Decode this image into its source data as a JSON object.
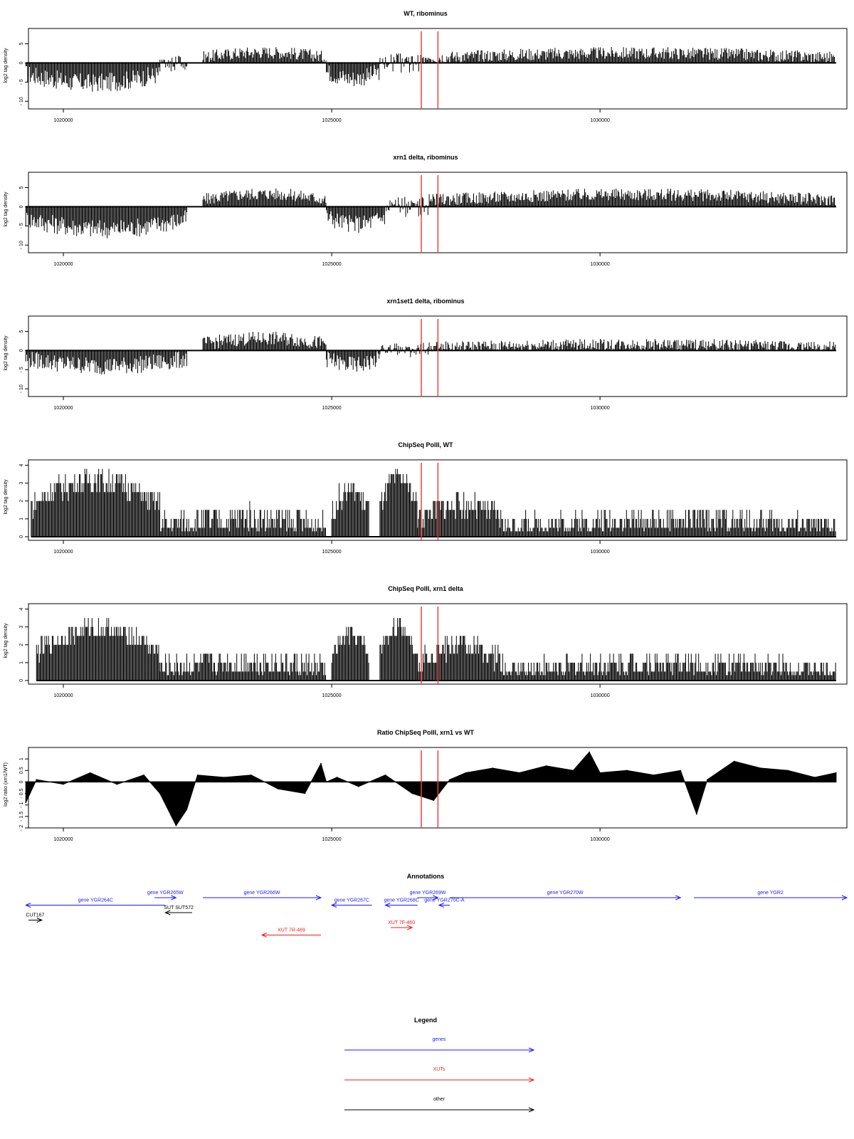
{
  "x_ticks": [
    1020000,
    1025000,
    1030000
  ],
  "xlim": [
    1019350,
    1034600
  ],
  "marker_positions": [
    1026670,
    1026980
  ],
  "colors": {
    "trace": "#000000",
    "marker": "#f04040",
    "gene": "#1c1cf0",
    "xut": "#f01c1c",
    "other": "#000000"
  },
  "chart_data": [
    {
      "type": "bar",
      "title": "WT, ribominus",
      "ylabel": "log2 tag density",
      "ylim": [
        -12,
        9
      ],
      "y_ticks": [
        -10,
        -5,
        0,
        5
      ],
      "series": [
        {
          "start": 1019300,
          "end": 1021800,
          "level": -5.2,
          "spread": 2.5,
          "sign": "neg"
        },
        {
          "start": 1021800,
          "end": 1022300,
          "level": -1.2,
          "spread": 1.0,
          "sign": "mix"
        },
        {
          "start": 1022600,
          "end": 1024900,
          "level": 2.8,
          "spread": 1.6,
          "sign": "pos"
        },
        {
          "start": 1024900,
          "end": 1025900,
          "level": -4.0,
          "spread": 2.3,
          "sign": "neg"
        },
        {
          "start": 1025900,
          "end": 1026800,
          "level": 1.2,
          "spread": 1.4,
          "sign": "mix"
        },
        {
          "start": 1026800,
          "end": 1034400,
          "level": 2.6,
          "spread": 1.6,
          "sign": "pos"
        }
      ]
    },
    {
      "type": "bar",
      "title": "xrn1 delta, ribominus",
      "ylabel": "log2 tag density",
      "ylim": [
        -12,
        9
      ],
      "y_ticks": [
        -10,
        -5,
        0,
        5
      ],
      "series": [
        {
          "start": 1019300,
          "end": 1022300,
          "level": -5.8,
          "spread": 2.5,
          "sign": "neg"
        },
        {
          "start": 1022600,
          "end": 1024900,
          "level": 3.4,
          "spread": 1.6,
          "sign": "pos"
        },
        {
          "start": 1024900,
          "end": 1026000,
          "level": -4.5,
          "spread": 2.3,
          "sign": "neg"
        },
        {
          "start": 1026000,
          "end": 1026800,
          "level": 1.0,
          "spread": 1.8,
          "sign": "mix"
        },
        {
          "start": 1026800,
          "end": 1034400,
          "level": 3.2,
          "spread": 1.6,
          "sign": "pos"
        }
      ]
    },
    {
      "type": "bar",
      "title": "xrn1set1 delta, ribominus",
      "ylabel": "log2 tag density",
      "ylim": [
        -12,
        9
      ],
      "y_ticks": [
        -10,
        -5,
        0,
        5
      ],
      "series": [
        {
          "start": 1019300,
          "end": 1022300,
          "level": -4.0,
          "spread": 2.3,
          "sign": "neg"
        },
        {
          "start": 1022600,
          "end": 1024900,
          "level": 3.2,
          "spread": 1.8,
          "sign": "pos"
        },
        {
          "start": 1024900,
          "end": 1025900,
          "level": -3.8,
          "spread": 2.2,
          "sign": "neg"
        },
        {
          "start": 1025900,
          "end": 1026800,
          "level": 0.6,
          "spread": 1.6,
          "sign": "mix"
        },
        {
          "start": 1026800,
          "end": 1034400,
          "level": 1.6,
          "spread": 1.5,
          "sign": "pos"
        }
      ]
    },
    {
      "type": "bar",
      "title": "ChipSeq PolII, WT",
      "ylabel": "log2 tag density",
      "ylim": [
        -0.2,
        4.3
      ],
      "y_ticks": [
        0,
        1,
        2,
        3,
        4
      ],
      "series": [
        {
          "start": 1019400,
          "end": 1021800,
          "level": 3.2,
          "spread": 0.7,
          "sign": "pos"
        },
        {
          "start": 1021800,
          "end": 1024900,
          "level": 1.0,
          "spread": 0.8,
          "sign": "pos"
        },
        {
          "start": 1025000,
          "end": 1025700,
          "level": 2.6,
          "spread": 0.7,
          "sign": "pos"
        },
        {
          "start": 1025900,
          "end": 1026600,
          "level": 3.3,
          "spread": 0.6,
          "sign": "pos"
        },
        {
          "start": 1026600,
          "end": 1028200,
          "level": 1.8,
          "spread": 0.7,
          "sign": "pos"
        },
        {
          "start": 1028200,
          "end": 1034400,
          "level": 0.9,
          "spread": 0.7,
          "sign": "pos"
        }
      ]
    },
    {
      "type": "bar",
      "title": "ChipSeq PolII, xrn1 delta",
      "ylabel": "log2 tag density",
      "ylim": [
        -0.2,
        4.3
      ],
      "y_ticks": [
        0,
        1,
        2,
        3,
        4
      ],
      "series": [
        {
          "start": 1019500,
          "end": 1021800,
          "level": 2.9,
          "spread": 0.6,
          "sign": "pos"
        },
        {
          "start": 1021800,
          "end": 1024900,
          "level": 1.0,
          "spread": 0.8,
          "sign": "pos"
        },
        {
          "start": 1025000,
          "end": 1025700,
          "level": 2.5,
          "spread": 0.6,
          "sign": "pos"
        },
        {
          "start": 1025900,
          "end": 1026600,
          "level": 3.0,
          "spread": 0.6,
          "sign": "pos"
        },
        {
          "start": 1026600,
          "end": 1028200,
          "level": 1.9,
          "spread": 0.7,
          "sign": "pos"
        },
        {
          "start": 1028200,
          "end": 1034400,
          "level": 0.9,
          "spread": 0.7,
          "sign": "pos"
        }
      ]
    },
    {
      "type": "area",
      "title": "Ratio ChipSeq PolII, xrn1 vs WT",
      "ylabel": "log2 ratio (xrn1/WT)",
      "ylim": [
        -2.0,
        1.5
      ],
      "y_ticks": [
        -2.0,
        -1.5,
        -1.0,
        -0.5,
        0.0,
        0.5,
        1.0
      ],
      "x": [
        1019300,
        1019500,
        1020000,
        1020500,
        1021000,
        1021500,
        1021800,
        1022100,
        1022300,
        1022500,
        1023000,
        1023500,
        1024000,
        1024500,
        1024800,
        1024900,
        1025100,
        1025500,
        1026000,
        1026500,
        1026900,
        1027200,
        1027500,
        1028000,
        1028500,
        1029000,
        1029500,
        1029800,
        1030000,
        1030500,
        1031000,
        1031500,
        1031800,
        1032000,
        1032500,
        1033000,
        1033500,
        1034000,
        1034400
      ],
      "values": [
        -0.9,
        0.1,
        -0.1,
        0.4,
        -0.1,
        0.3,
        -0.5,
        -1.9,
        -1.2,
        0.3,
        0.2,
        0.3,
        -0.3,
        -0.5,
        0.8,
        0.0,
        0.2,
        -0.2,
        0.3,
        -0.5,
        -0.8,
        0.1,
        0.4,
        0.6,
        0.4,
        0.7,
        0.5,
        1.3,
        0.4,
        0.5,
        0.3,
        0.5,
        -1.4,
        0.1,
        0.9,
        0.6,
        0.5,
        0.2,
        0.4
      ]
    }
  ],
  "annotations": {
    "title": "Annotations",
    "genes": [
      {
        "label": "gene YGR264C",
        "start": 1019300,
        "end": 1021900,
        "dir": -1,
        "row": 2
      },
      {
        "label": "gene YGR265W",
        "start": 1021700,
        "end": 1022100,
        "dir": 1,
        "row": 1
      },
      {
        "label": "gene YGR266W",
        "start": 1022600,
        "end": 1024800,
        "dir": 1,
        "row": 1
      },
      {
        "label": "gene YGR267C",
        "start": 1025000,
        "end": 1025750,
        "dir": -1,
        "row": 2
      },
      {
        "label": "gene YGR268C",
        "start": 1026000,
        "end": 1026600,
        "dir": -1,
        "row": 2
      },
      {
        "label": "gene YGR269W",
        "start": 1026600,
        "end": 1026980,
        "dir": 1,
        "row": 1
      },
      {
        "label": "gene YGR270C-A",
        "start": 1027000,
        "end": 1027200,
        "dir": -1,
        "row": 2
      },
      {
        "label": "gene YGR270W",
        "start": 1027200,
        "end": 1031500,
        "dir": 1,
        "row": 1
      },
      {
        "label": "gene YGR2",
        "start": 1031750,
        "end": 1034600,
        "dir": 1,
        "row": 1
      }
    ],
    "others": [
      {
        "label": "CUT167",
        "start": 1019350,
        "end": 1019600,
        "dir": 1,
        "row": 4
      },
      {
        "label": "SUT SUT572",
        "start": 1021900,
        "end": 1022400,
        "dir": -1,
        "row": 3
      }
    ],
    "xuts": [
      {
        "label": "XUT 7R-469",
        "start": 1023700,
        "end": 1024800,
        "dir": -1,
        "row": 6
      },
      {
        "label": "XUT 7F-460",
        "start": 1026100,
        "end": 1026500,
        "dir": 1,
        "row": 5
      }
    ]
  },
  "legend": {
    "title": "Legend",
    "items": [
      {
        "label": "genes",
        "kind": "gene"
      },
      {
        "label": "XUTs",
        "kind": "xut"
      },
      {
        "label": "other",
        "kind": "other"
      }
    ]
  }
}
